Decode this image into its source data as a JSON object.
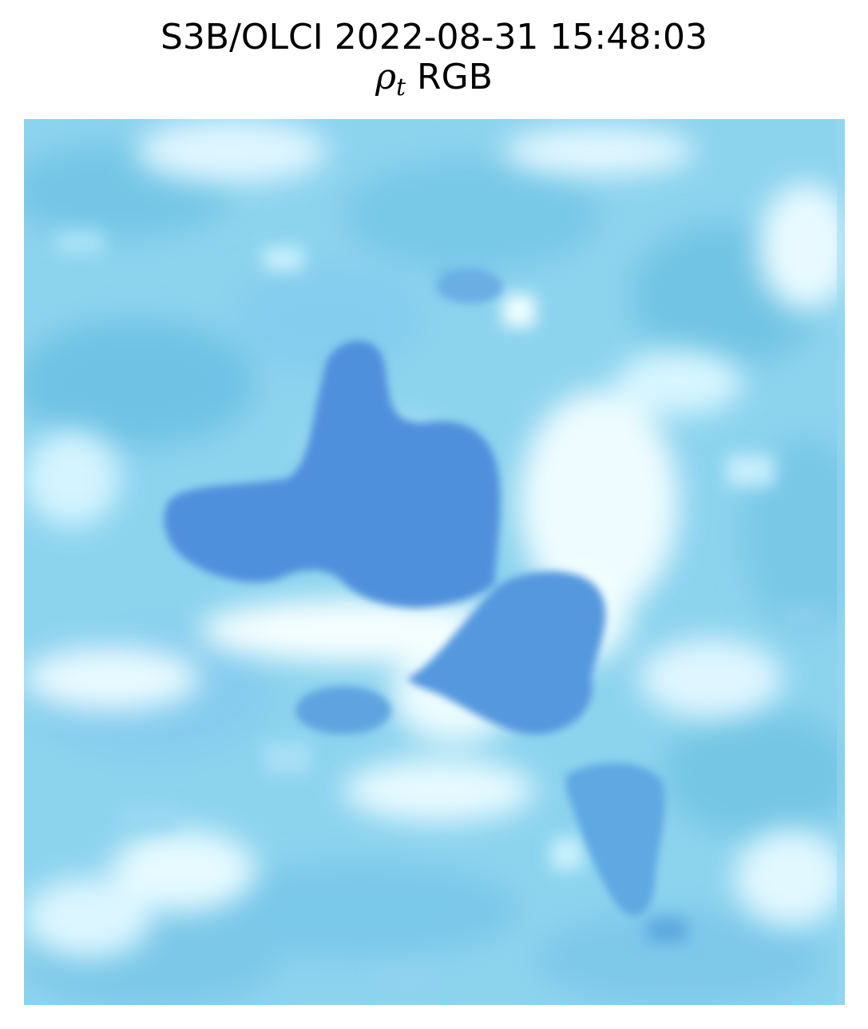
{
  "figure": {
    "title": "S3B/OLCI 2022-08-31 15:48:03",
    "subtitle_symbol": "ρ",
    "subtitle_subscript": "t",
    "subtitle_suffix": " RGB"
  },
  "image": {
    "description_colors": {
      "base": "#8fd6f0",
      "light": "#d8f8ff",
      "white": "#f4ffff",
      "mid": "#6fc3e6",
      "deep": "#5090dc",
      "deep_alt": "#5a9fe0"
    }
  }
}
